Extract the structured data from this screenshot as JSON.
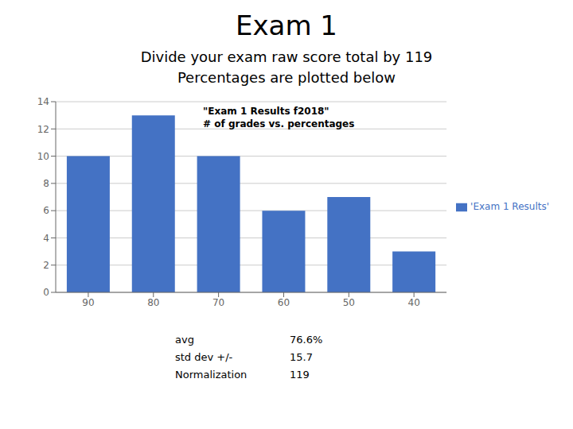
{
  "chart_data": {
    "type": "bar",
    "title": "Exam 1",
    "subtitle": [
      "Divide your exam raw score total by 119",
      "Percentages are plotted below"
    ],
    "categories": [
      "90",
      "80",
      "70",
      "60",
      "50",
      "40"
    ],
    "series": [
      {
        "name": "'Exam 1 Results'",
        "color": "#4472C4",
        "values": [
          10,
          13,
          10,
          6,
          7,
          3
        ]
      }
    ],
    "ylim": [
      0,
      14
    ],
    "yticks": [
      0,
      2,
      4,
      6,
      8,
      10,
      12,
      14
    ],
    "grid": true,
    "legend": "right",
    "annotations": [
      [
        "\"Exam 1 Results f2018\"",
        "# of grades vs. percentages"
      ],
      [
        [
          "avg",
          "76.6%"
        ],
        [
          "std dev +/-",
          "15.7"
        ],
        [
          "Normalization",
          "119"
        ]
      ]
    ]
  }
}
